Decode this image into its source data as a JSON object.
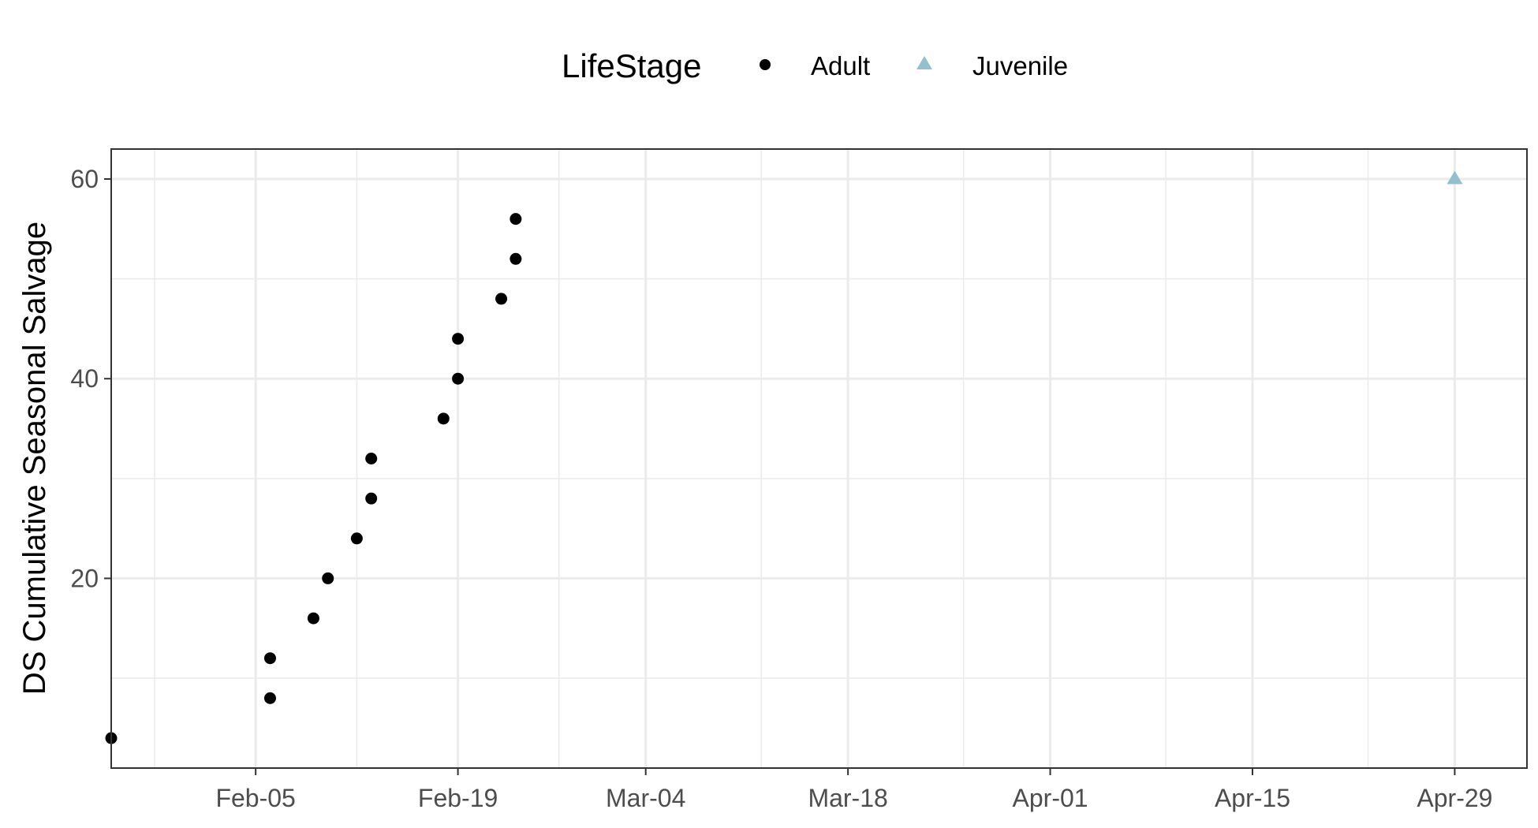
{
  "chart_data": {
    "type": "scatter",
    "xlabel": "",
    "ylabel": "DS Cumulative Seasonal Salvage",
    "x_ticks": [
      "Feb-05",
      "Feb-19",
      "Mar-04",
      "Mar-18",
      "Apr-01",
      "Apr-15",
      "Apr-29"
    ],
    "x_tick_dates": [
      "2021-02-05",
      "2021-02-19",
      "2021-03-04",
      "2021-03-18",
      "2021-04-01",
      "2021-04-15",
      "2021-04-29"
    ],
    "xlim": [
      "2021-01-26",
      "2021-05-04"
    ],
    "y_ticks": [
      20,
      40,
      60
    ],
    "ylim": [
      1,
      63
    ],
    "grid": true,
    "legend": {
      "title": "LifeStage",
      "position": "top",
      "entries": [
        "Adult",
        "Juvenile"
      ]
    },
    "series": [
      {
        "name": "Adult",
        "marker": "circle",
        "color": "#000000",
        "points": [
          {
            "x": "2021-01-26",
            "y": 4
          },
          {
            "x": "2021-02-06",
            "y": 8
          },
          {
            "x": "2021-02-06",
            "y": 12
          },
          {
            "x": "2021-02-09",
            "y": 16
          },
          {
            "x": "2021-02-10",
            "y": 20
          },
          {
            "x": "2021-02-12",
            "y": 24
          },
          {
            "x": "2021-02-13",
            "y": 28
          },
          {
            "x": "2021-02-13",
            "y": 32
          },
          {
            "x": "2021-02-18",
            "y": 36
          },
          {
            "x": "2021-02-19",
            "y": 40
          },
          {
            "x": "2021-02-19",
            "y": 44
          },
          {
            "x": "2021-02-22",
            "y": 48
          },
          {
            "x": "2021-02-23",
            "y": 52
          },
          {
            "x": "2021-02-23",
            "y": 56
          }
        ]
      },
      {
        "name": "Juvenile",
        "marker": "triangle",
        "color": "#94bfcf",
        "points": [
          {
            "x": "2021-04-29",
            "y": 60
          }
        ]
      }
    ]
  }
}
